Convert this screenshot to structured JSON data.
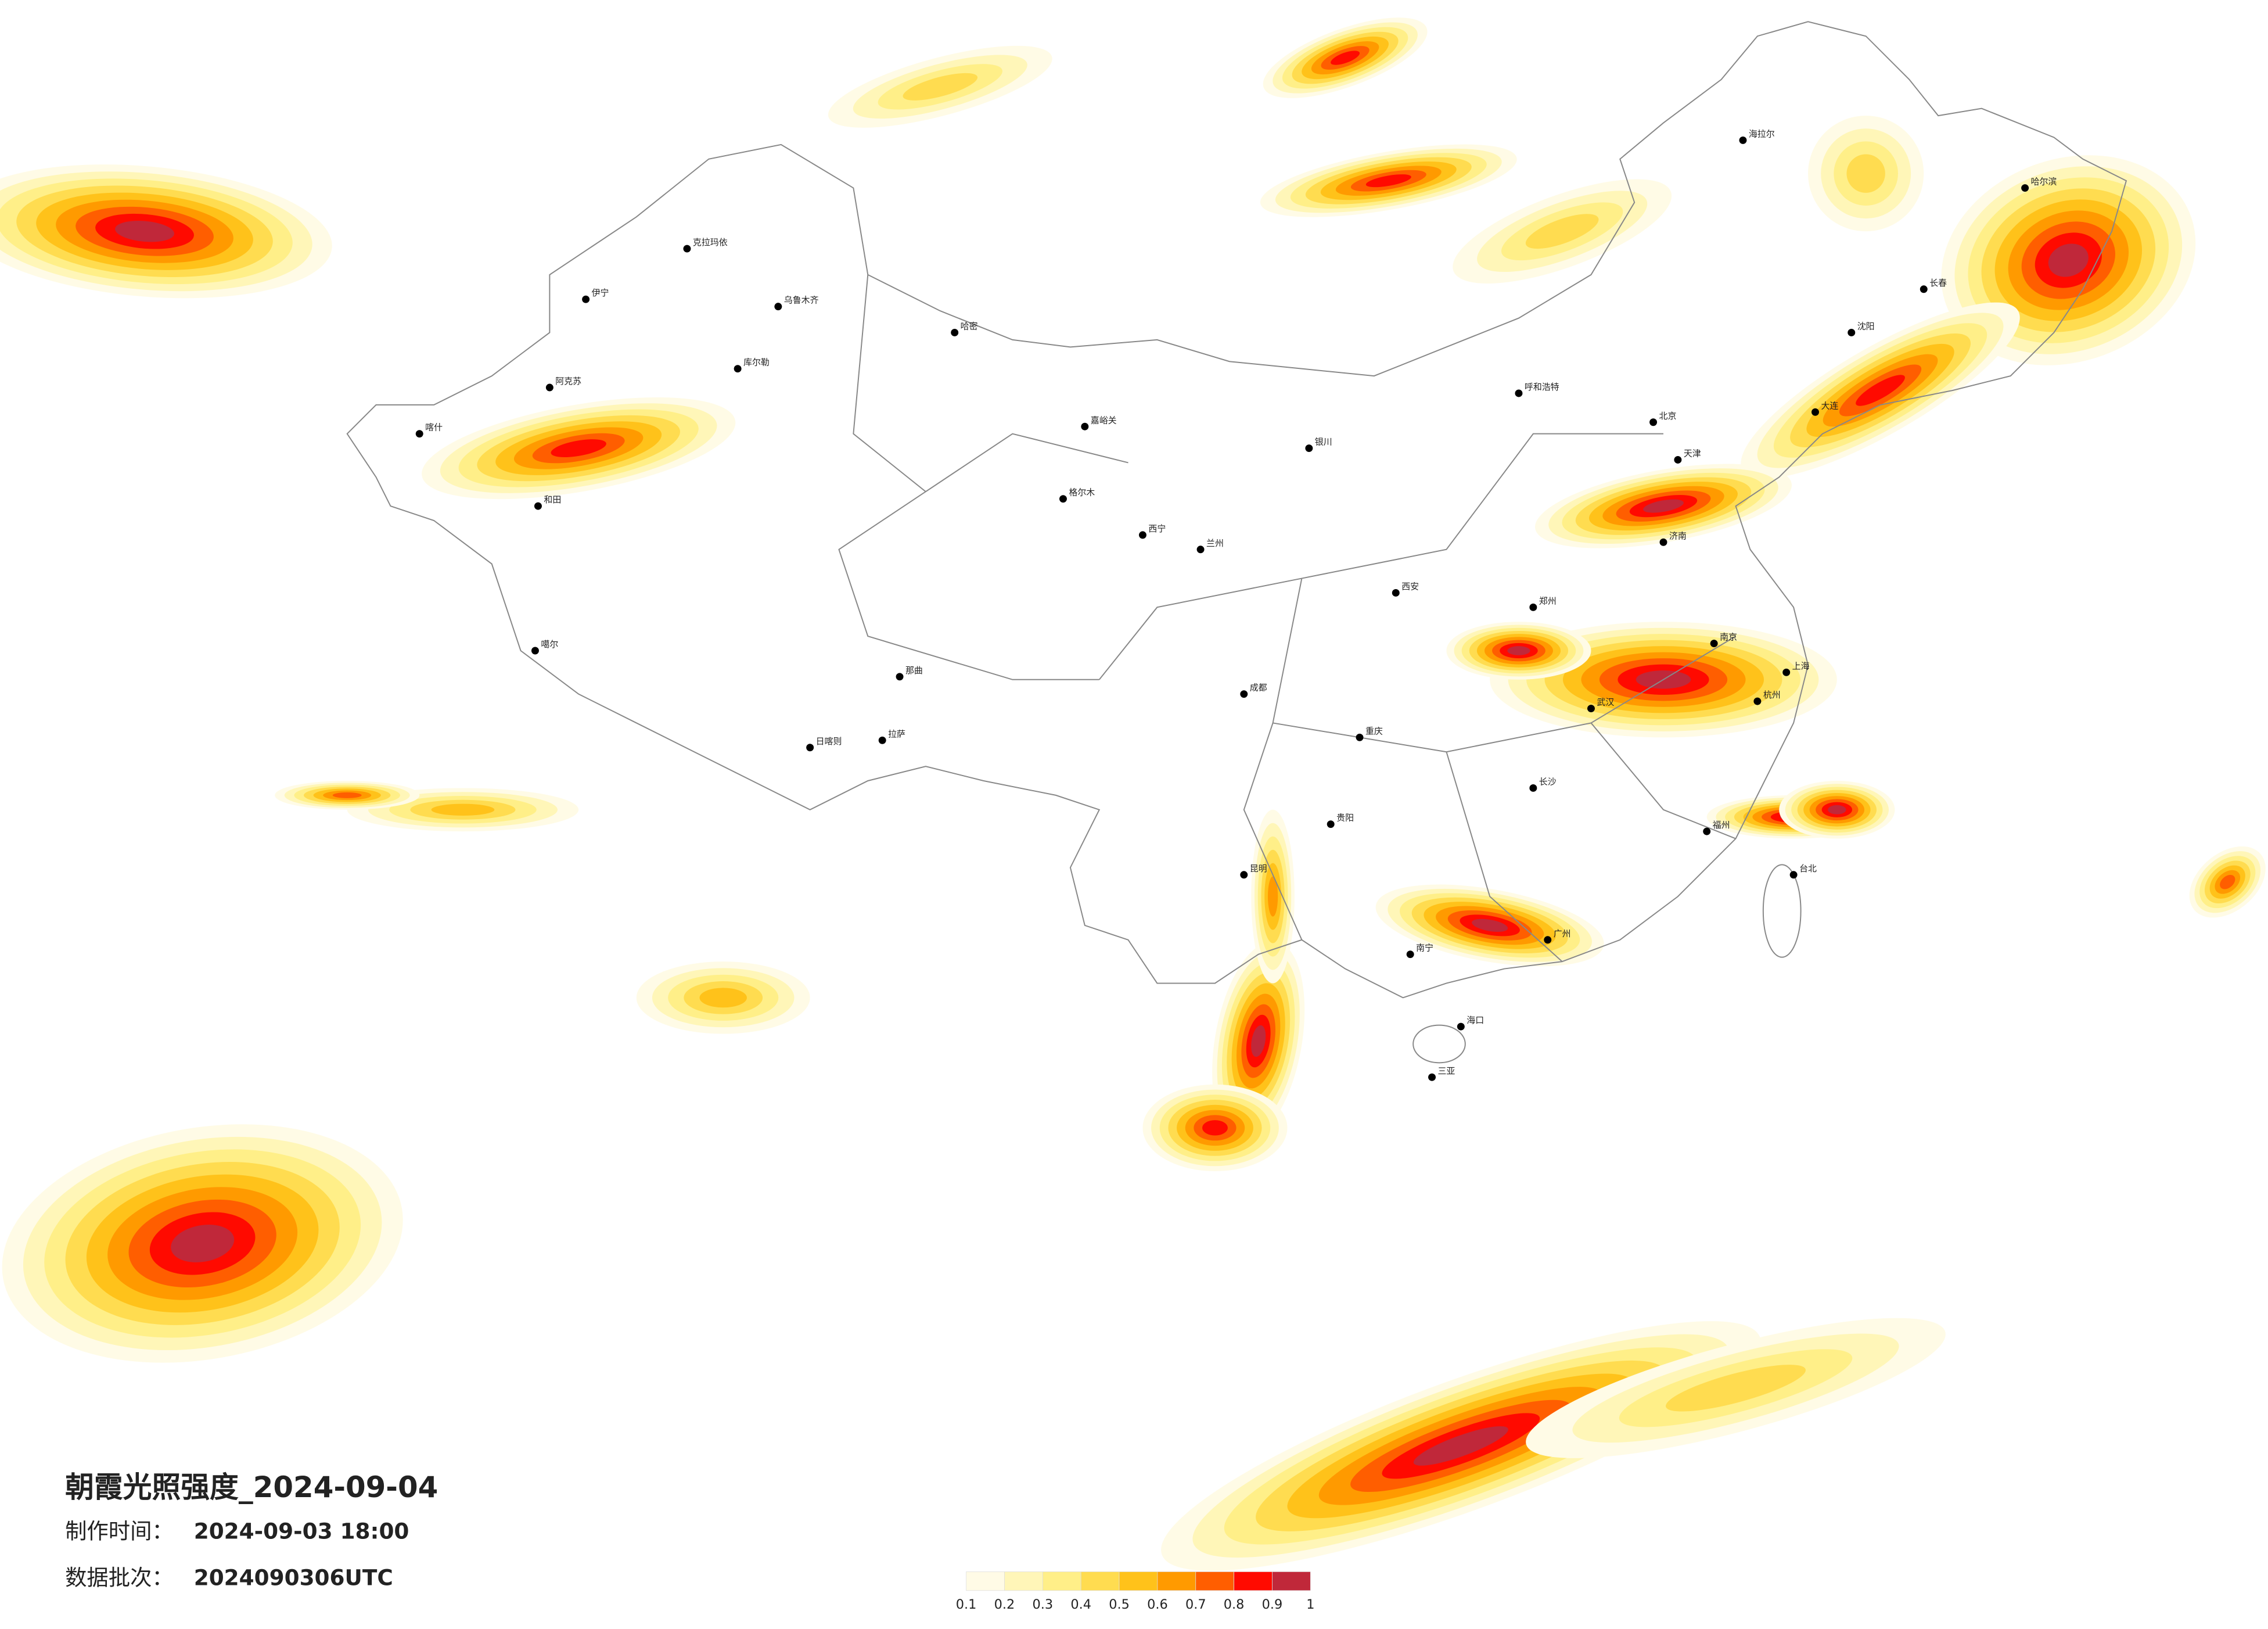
{
  "title": "朝霞光照强度_2024-09-04",
  "made_time_label": "制作时间：",
  "made_time": "2024-09-03 18:00",
  "batch_label": "数据批次：",
  "batch": "2024090306UTC",
  "legend": {
    "colors": [
      "#fffbe6",
      "#fff6b8",
      "#ffef88",
      "#ffdc50",
      "#ffc21a",
      "#ff9a00",
      "#ff5e00",
      "#ff0a00",
      "#c0283a"
    ],
    "ticks": [
      0.1,
      0.2,
      0.3,
      0.4,
      0.5,
      0.6,
      0.7,
      0.8,
      0.9,
      1
    ]
  },
  "cities": [
    "克拉玛依",
    "伊宁",
    "乌鲁木齐",
    "哈密",
    "库尔勒",
    "阿克苏",
    "喀什",
    "和田",
    "嘉峪关",
    "格尔木",
    "噶尔",
    "拉萨",
    "日喀则",
    "那曲",
    "海拉尔",
    "哈尔滨",
    "呼和浩特",
    "北京",
    "天津",
    "银川",
    "兰州",
    "西宁",
    "西安",
    "成都",
    "重庆",
    "昆明",
    "贵阳",
    "南宁",
    "广州",
    "武汉",
    "长沙",
    "上海",
    "南京",
    "杭州",
    "福州",
    "台北",
    "海口",
    "三亚",
    "沈阳",
    "长春",
    "大连",
    "济南",
    "郑州"
  ]
}
